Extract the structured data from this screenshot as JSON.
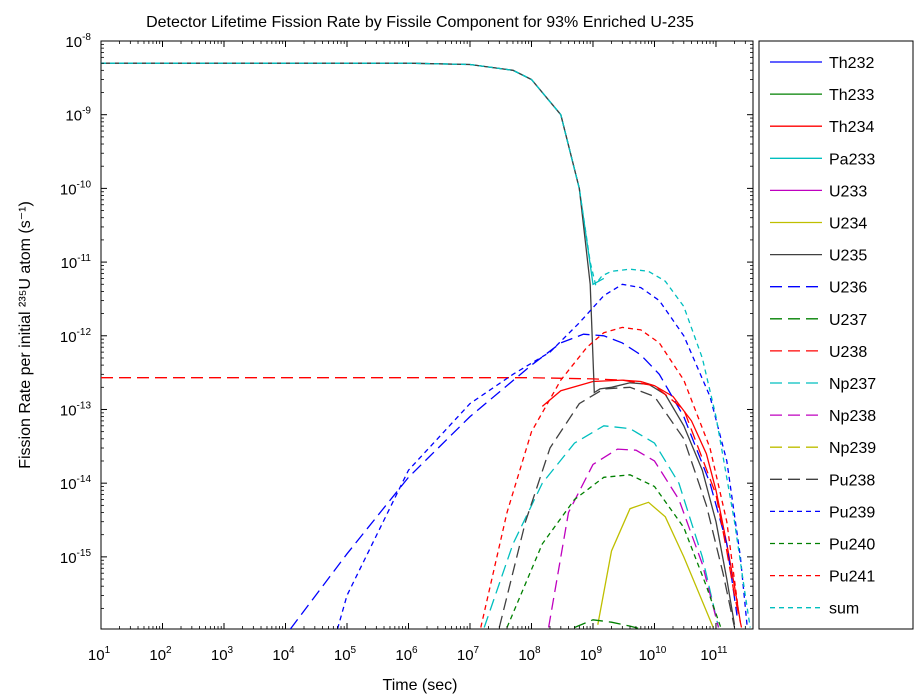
{
  "chart_data": {
    "type": "line",
    "title": "Detector Lifetime Fission Rate by Fissile Component for 93% Enriched U-235",
    "xlabel": "Time (sec)",
    "ylabel": "Fission Rate per initial ²³⁵U atom (s⁻¹)",
    "x_scale": "log",
    "y_scale": "log",
    "xlim": [
      10,
      400000000000
    ],
    "ylim": [
      1.05e-16,
      1e-08
    ],
    "x_ticks": [
      10,
      100,
      1000,
      10000,
      100000,
      1000000,
      10000000,
      100000000,
      1000000000,
      10000000000,
      100000000000
    ],
    "x_tick_labels": [
      {
        "base": "10",
        "exp": "1"
      },
      {
        "base": "10",
        "exp": "2"
      },
      {
        "base": "10",
        "exp": "3"
      },
      {
        "base": "10",
        "exp": "4"
      },
      {
        "base": "10",
        "exp": "5"
      },
      {
        "base": "10",
        "exp": "6"
      },
      {
        "base": "10",
        "exp": "7"
      },
      {
        "base": "10",
        "exp": "8"
      },
      {
        "base": "10",
        "exp": "9"
      },
      {
        "base": "10",
        "exp": "10"
      },
      {
        "base": "10",
        "exp": "11"
      }
    ],
    "y_ticks": [
      1e-15,
      1e-14,
      1e-13,
      1e-12,
      1e-11,
      1e-10,
      1e-09,
      1e-08
    ],
    "y_tick_labels": [
      {
        "base": "10",
        "exp": "-15"
      },
      {
        "base": "10",
        "exp": "-14"
      },
      {
        "base": "10",
        "exp": "-13"
      },
      {
        "base": "10",
        "exp": "-12"
      },
      {
        "base": "10",
        "exp": "-11"
      },
      {
        "base": "10",
        "exp": "-10"
      },
      {
        "base": "10",
        "exp": "-9"
      },
      {
        "base": "10",
        "exp": "-8"
      }
    ],
    "grid": false,
    "legend_position": "outside-right",
    "series": [
      {
        "name": "Th232",
        "color": "#0000ff",
        "dash": "solid",
        "x": [],
        "y": []
      },
      {
        "name": "Th233",
        "color": "#008000",
        "dash": "solid",
        "x": [],
        "y": []
      },
      {
        "name": "Th234",
        "color": "#ff0000",
        "dash": "solid",
        "x": [
          150000000.0,
          300000000.0,
          1000000000.0,
          3000000000.0,
          6000000000.0,
          10000000000.0,
          20000000000.0,
          40000000000.0,
          70000000000.0,
          100000000000.0,
          150000000000.0,
          200000000000.0,
          250000000000.0
        ],
        "y": [
          1.1e-13,
          1.8e-13,
          2.4e-13,
          2.5e-13,
          2.4e-13,
          2.1e-13,
          1.5e-13,
          7e-14,
          2.5e-14,
          8e-15,
          1.5e-15,
          4e-16,
          1.3e-16
        ]
      },
      {
        "name": "Pa233",
        "color": "#00bfbf",
        "dash": "solid",
        "x": [
          10,
          1000000.0,
          10000000.0,
          50000000.0,
          100000000.0,
          300000000.0,
          600000000.0,
          1000000000.0,
          1500000000.0
        ],
        "y": [
          5e-09,
          5e-09,
          4.8e-09,
          4e-09,
          3e-09,
          1e-09,
          1e-10,
          5e-12,
          6e-12
        ]
      },
      {
        "name": "U233",
        "color": "#bf00bf",
        "dash": "solid",
        "x": [],
        "y": []
      },
      {
        "name": "U234",
        "color": "#bfbf00",
        "dash": "solid",
        "x": [
          1200000000.0,
          2000000000.0,
          4000000000.0,
          8000000000.0,
          15000000000.0,
          30000000000.0,
          60000000000.0,
          90000000000.0
        ],
        "y": [
          1.2e-16,
          1.2e-15,
          4.5e-15,
          5.5e-15,
          3.5e-15,
          1e-15,
          2.5e-16,
          1.1e-16
        ]
      },
      {
        "name": "U235",
        "color": "#404040",
        "dash": "solid",
        "x": [
          10,
          1000000.0,
          10000000.0,
          50000000.0,
          100000000.0,
          300000000.0,
          600000000.0,
          900000000.0,
          1050000000.0,
          1300000000.0,
          2000000000.0,
          4000000000.0,
          8000000000.0,
          15000000000.0,
          30000000000.0,
          60000000000.0,
          100000000000.0,
          150000000000.0,
          200000000000.0
        ],
        "y": [
          5e-09,
          5e-09,
          4.8e-09,
          4e-09,
          3e-09,
          1e-09,
          1e-10,
          5e-12,
          1.7e-13,
          1.9e-13,
          2e-13,
          2.3e-13,
          2.2e-13,
          1.6e-13,
          6e-14,
          1.5e-14,
          3e-15,
          5e-16,
          1.2e-16
        ]
      },
      {
        "name": "U236",
        "color": "#0000ff",
        "dash": "long",
        "x": [
          12000.0,
          100000.0,
          1000000.0,
          10000000.0,
          100000000.0,
          300000000.0,
          700000000.0,
          1500000000.0,
          3000000000.0,
          6000000000.0,
          12000000000.0,
          30000000000.0,
          80000000000.0,
          150000000000.0,
          220000000000.0
        ],
        "y": [
          1.05e-16,
          1.1e-15,
          1.2e-14,
          8e-14,
          4e-13,
          8e-13,
          1.05e-12,
          1e-12,
          8e-13,
          5.5e-13,
          3e-13,
          8e-14,
          1e-14,
          1.5e-15,
          1.6e-16
        ]
      },
      {
        "name": "U237",
        "color": "#008000",
        "dash": "long",
        "x": [
          500000000.0,
          1000000000.0,
          2000000000.0,
          4000000000.0,
          6000000000.0
        ],
        "y": [
          1.1e-16,
          1.4e-16,
          1.3e-16,
          1.15e-16,
          1.05e-16
        ]
      },
      {
        "name": "U238",
        "color": "#ff0000",
        "dash": "long",
        "x": [
          10,
          10000.0,
          1000000.0,
          100000000.0,
          1000000000.0,
          3000000000.0,
          10000000000.0,
          30000000000.0,
          100000000000.0,
          150000000000.0,
          200000000000.0,
          260000000000.0
        ],
        "y": [
          2.7e-13,
          2.7e-13,
          2.7e-13,
          2.7e-13,
          2.6e-13,
          2.5e-13,
          2.1e-13,
          1e-13,
          7e-15,
          1.2e-15,
          3e-16,
          1.1e-16
        ]
      },
      {
        "name": "Np237",
        "color": "#00bfbf",
        "dash": "long",
        "x": [
          17000000.0,
          50000000.0,
          150000000.0,
          500000000.0,
          1500000000.0,
          4000000000.0,
          10000000000.0,
          25000000000.0,
          60000000000.0,
          110000000000.0
        ],
        "y": [
          1.1e-16,
          1.5e-15,
          1e-14,
          3.5e-14,
          6e-14,
          5.5e-14,
          3.5e-14,
          1e-14,
          1e-15,
          1.1e-16
        ]
      },
      {
        "name": "Np238",
        "color": "#bf00bf",
        "dash": "long",
        "x": [
          190000000.0,
          400000000.0,
          1000000000.0,
          2500000000.0,
          5000000000.0,
          10000000000.0,
          25000000000.0,
          60000000000.0,
          110000000000.0
        ],
        "y": [
          1.1e-16,
          4e-15,
          1.8e-14,
          2.9e-14,
          2.8e-14,
          2e-14,
          6e-15,
          8e-16,
          1.1e-16
        ]
      },
      {
        "name": "Np239",
        "color": "#bfbf00",
        "dash": "long",
        "x": [],
        "y": []
      },
      {
        "name": "Pu238",
        "color": "#404040",
        "dash": "long",
        "x": [
          30000000.0,
          80000000.0,
          200000000.0,
          600000000.0,
          1500000000.0,
          4000000000.0,
          10000000000.0,
          30000000000.0,
          70000000000.0,
          130000000000.0,
          200000000000.0
        ],
        "y": [
          1.1e-16,
          3e-15,
          3e-14,
          1.2e-13,
          1.9e-13,
          2e-13,
          1.5e-13,
          4e-14,
          5e-15,
          6e-16,
          1.1e-16
        ]
      },
      {
        "name": "Pu239",
        "color": "#0000ff",
        "dash": "short",
        "x": [
          70000.0,
          100000.0,
          1000000.0,
          10000000.0,
          50000000.0,
          200000000.0,
          600000000.0,
          1500000000.0,
          3000000000.0,
          6000000000.0,
          12000000000.0,
          30000000000.0,
          80000000000.0,
          150000000000.0,
          250000000000.0,
          320000000000.0
        ],
        "y": [
          1.05e-16,
          3e-16,
          1.5e-14,
          1.2e-13,
          3e-13,
          6e-13,
          1.5e-12,
          3.5e-12,
          5e-12,
          4.5e-12,
          3e-12,
          1e-12,
          1.5e-13,
          2e-14,
          1e-15,
          1.2e-16
        ]
      },
      {
        "name": "Pu240",
        "color": "#008000",
        "dash": "short",
        "x": [
          40000000.0,
          150000000.0,
          500000000.0,
          1500000000.0,
          4000000000.0,
          10000000000.0,
          30000000000.0,
          70000000000.0,
          120000000000.0
        ],
        "y": [
          1.1e-16,
          1.5e-15,
          6e-15,
          1.2e-14,
          1.3e-14,
          9e-15,
          2.5e-15,
          4e-16,
          1.1e-16
        ]
      },
      {
        "name": "Pu241",
        "color": "#ff0000",
        "dash": "short",
        "x": [
          15000000.0,
          40000000.0,
          100000000.0,
          300000000.0,
          800000000.0,
          1500000000.0,
          3000000000.0,
          6000000000.0,
          12000000000.0,
          30000000000.0,
          80000000000.0,
          150000000000.0,
          230000000000.0
        ],
        "y": [
          1.1e-16,
          4e-15,
          5e-14,
          2.5e-13,
          7e-13,
          1.1e-12,
          1.3e-12,
          1.2e-12,
          8e-13,
          2.5e-13,
          3e-14,
          3e-15,
          2e-16
        ]
      },
      {
        "name": "sum",
        "color": "#00bfbf",
        "dash": "short",
        "x": [
          10,
          1000000.0,
          10000000.0,
          50000000.0,
          100000000.0,
          300000000.0,
          600000000.0,
          900000000.0,
          1100000000.0,
          1400000000.0,
          2000000000.0,
          4000000000.0,
          8000000000.0,
          15000000000.0,
          30000000000.0,
          60000000000.0,
          100000000000.0,
          200000000000.0,
          300000000000.0,
          360000000000.0
        ],
        "y": [
          5e-09,
          5e-09,
          4.8e-09,
          4e-09,
          3e-09,
          1e-09,
          1e-10,
          1e-11,
          5e-12,
          6.5e-12,
          7.5e-12,
          8e-12,
          7.5e-12,
          5.5e-12,
          2.5e-12,
          5e-13,
          8e-14,
          3e-15,
          3e-16,
          1.1e-16
        ]
      }
    ]
  }
}
